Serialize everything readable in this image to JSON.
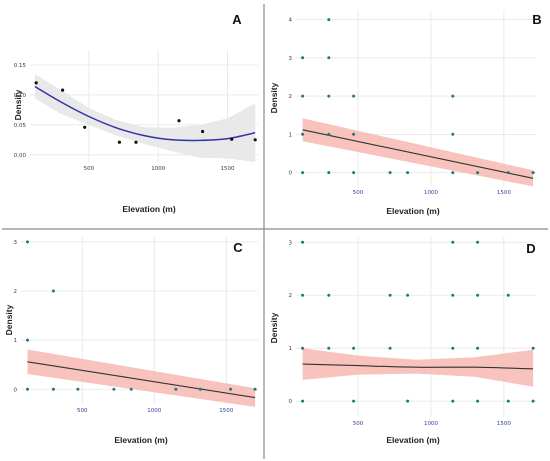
{
  "chart_data": [
    {
      "panel": "A",
      "type": "scatter",
      "xlabel": "Elevation (m)",
      "ylabel": "Density",
      "xticks": [
        500,
        1000,
        1500
      ],
      "yticks": [
        0.0,
        0.05,
        0.1,
        0.15
      ],
      "ytick_labels": [
        "0.00",
        "0.05",
        "0.10",
        "0.15"
      ],
      "xlim": [
        75,
        1720
      ],
      "ylim": [
        -0.012,
        0.175
      ],
      "points": {
        "x": [
          120,
          310,
          470,
          720,
          840,
          1150,
          1320,
          1530,
          1700
        ],
        "y": [
          0.12,
          0.108,
          0.046,
          0.021,
          0.021,
          0.057,
          0.039,
          0.026,
          0.025
        ]
      },
      "trend": {
        "type": "quadratic-fit",
        "x": [
          110,
          300,
          500,
          700,
          900,
          1100,
          1300,
          1500,
          1700
        ],
        "y": [
          0.114,
          0.088,
          0.064,
          0.045,
          0.032,
          0.025,
          0.024,
          0.027,
          0.037
        ],
        "ci_upper": [
          0.135,
          0.108,
          0.078,
          0.058,
          0.046,
          0.045,
          0.05,
          0.061,
          0.086
        ],
        "ci_lower": [
          0.094,
          0.068,
          0.05,
          0.032,
          0.018,
          0.006,
          -0.005,
          -0.006,
          -0.012
        ]
      },
      "colors": {
        "line": "#3333aa",
        "band": "#e9e9e9",
        "points": "#111111"
      },
      "grid": true
    },
    {
      "panel": "B",
      "type": "scatter",
      "xlabel": "Elevation (m)",
      "ylabel": "Density",
      "xticks": [
        500,
        1000,
        1500
      ],
      "yticks": [
        0,
        1,
        2,
        3,
        4
      ],
      "ytick_labels": [
        "0",
        "1",
        "2",
        "3",
        "4"
      ],
      "xlim": [
        75,
        1720
      ],
      "ylim": [
        -0.35,
        4.25
      ],
      "points": {
        "x": [
          120,
          120,
          120,
          120,
          300,
          300,
          300,
          300,
          300,
          470,
          470,
          470,
          720,
          840,
          1150,
          1150,
          1150,
          1320,
          1530,
          1700
        ],
        "y": [
          0,
          1,
          2,
          3,
          0,
          1,
          2,
          3,
          4,
          0,
          1,
          2,
          0,
          0,
          0,
          1,
          2,
          0,
          0,
          0
        ]
      },
      "trend": {
        "type": "linear-fit",
        "x": [
          120,
          1700
        ],
        "y": [
          1.12,
          -0.15
        ],
        "ci_upper": [
          1.42,
          0.06
        ],
        "ci_lower": [
          0.82,
          -0.36
        ]
      },
      "colors": {
        "line": "#333333",
        "band": "#f6b8b0",
        "points": "#1f7a80"
      },
      "grid": true
    },
    {
      "panel": "C",
      "type": "scatter",
      "xlabel": "Elevation (m)",
      "ylabel": "Density",
      "xticks": [
        500,
        1000,
        1500
      ],
      "yticks": [
        0,
        1,
        2,
        3
      ],
      "ytick_labels": [
        "0",
        "1",
        "2",
        "3"
      ],
      "xlim": [
        75,
        1720
      ],
      "ylim": [
        -0.3,
        3.1
      ],
      "points": {
        "x": [
          120,
          120,
          120,
          300,
          300,
          470,
          720,
          840,
          1150,
          1320,
          1530,
          1700
        ],
        "y": [
          0,
          1,
          3,
          0,
          2,
          0,
          0,
          0,
          0,
          0,
          0,
          0
        ]
      },
      "trend": {
        "type": "linear-fit",
        "x": [
          120,
          1700
        ],
        "y": [
          0.56,
          -0.17
        ],
        "ci_upper": [
          0.81,
          0.02
        ],
        "ci_lower": [
          0.31,
          -0.36
        ]
      },
      "colors": {
        "line": "#333333",
        "band": "#f6b8b0",
        "points": "#1f7a80"
      },
      "grid": true
    },
    {
      "panel": "D",
      "type": "scatter",
      "xlabel": "Elevation (m)",
      "ylabel": "Density",
      "xticks": [
        500,
        1000,
        1500
      ],
      "yticks": [
        0,
        1,
        2,
        3
      ],
      "ytick_labels": [
        "0",
        "1",
        "2",
        "3"
      ],
      "xlim": [
        75,
        1720
      ],
      "ylim": [
        -0.3,
        3.1
      ],
      "points": {
        "x": [
          120,
          120,
          120,
          120,
          300,
          300,
          470,
          470,
          720,
          720,
          840,
          840,
          1150,
          1150,
          1150,
          1150,
          1320,
          1320,
          1320,
          1320,
          1530,
          1530,
          1700,
          1700
        ],
        "y": [
          0,
          1,
          2,
          3,
          1,
          2,
          0,
          1,
          1,
          2,
          0,
          2,
          0,
          1,
          2,
          3,
          0,
          1,
          2,
          3,
          0,
          2,
          0,
          1
        ]
      },
      "trend": {
        "type": "quadratic-fit",
        "x": [
          120,
          500,
          900,
          1300,
          1700
        ],
        "y": [
          0.7,
          0.67,
          0.64,
          0.64,
          0.61
        ],
        "ci_upper": [
          1.0,
          0.86,
          0.78,
          0.83,
          0.97
        ],
        "ci_lower": [
          0.4,
          0.5,
          0.52,
          0.46,
          0.27
        ]
      },
      "colors": {
        "line": "#333333",
        "band": "#f6b8b0",
        "points": "#1f7a80"
      },
      "grid": true
    }
  ]
}
